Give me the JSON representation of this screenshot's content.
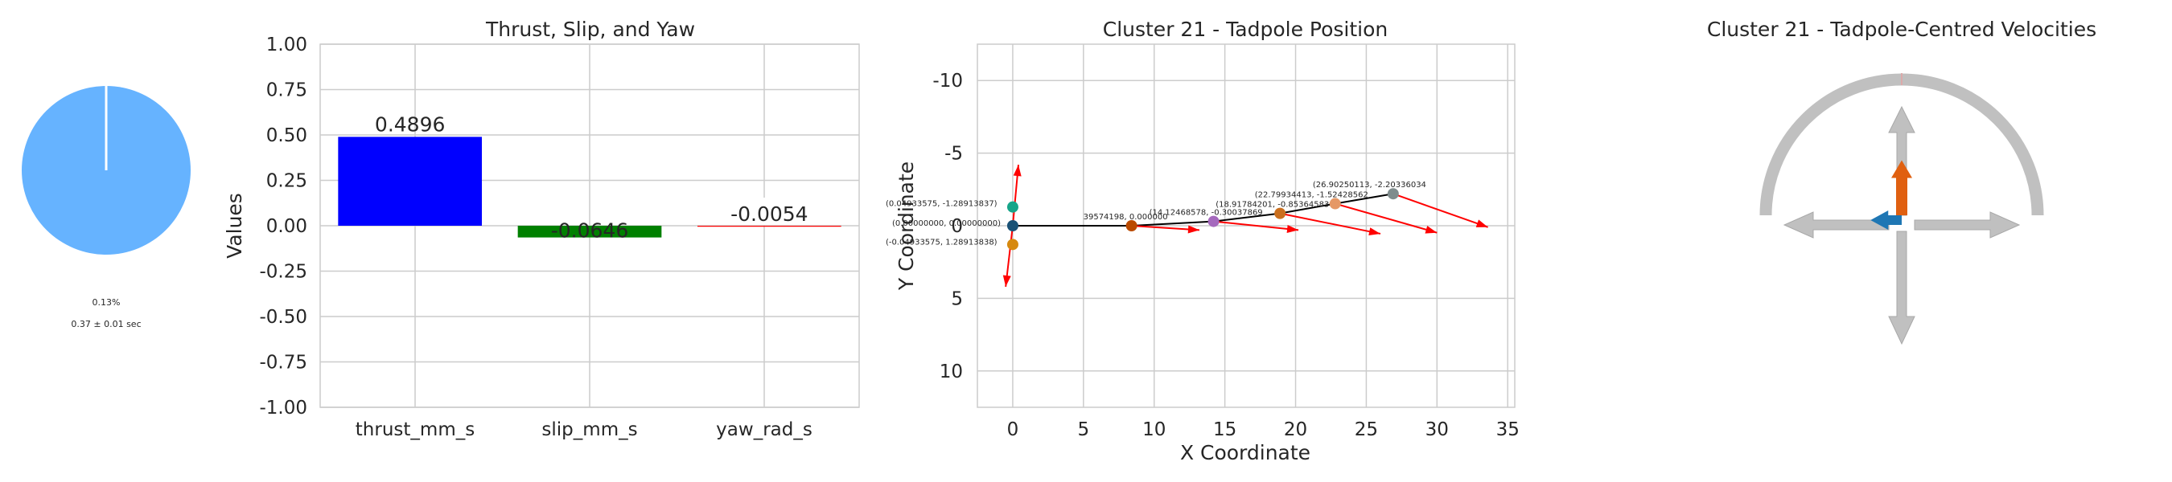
{
  "colors": {
    "pie": "#66b3ff",
    "thrust": "#0000ff",
    "slip": "#008000",
    "yaw": "#ff0000",
    "velocity_arrow": "#ff0000",
    "trajectory_line": "#000000",
    "compass_gray": "#c0c0c0",
    "thrust_arrow": "#e06010",
    "slip_arrow": "#1f77b4"
  },
  "chart_data": [
    {
      "type": "pie",
      "slices": [
        {
          "label": "",
          "value": 99.87
        },
        {
          "label": "0.13%",
          "value": 0.13
        }
      ],
      "annotations": [
        "0.13%",
        "0.37 ± 0.01 sec"
      ]
    },
    {
      "type": "bar",
      "title": "Thrust, Slip, and Yaw",
      "xlabel": "",
      "ylabel": "Values",
      "categories": [
        "thrust_mm_s",
        "slip_mm_s",
        "yaw_rad_s"
      ],
      "values": [
        0.4896,
        -0.0646,
        -0.0054
      ],
      "value_labels": [
        "0.4896",
        "-0.0646",
        "-0.0054"
      ],
      "ylim": [
        -1.0,
        1.0
      ],
      "yticks": [
        "1.00",
        "0.75",
        "0.50",
        "0.25",
        "0.00",
        "-0.25",
        "-0.50",
        "-0.75",
        "-1.00"
      ],
      "grid": true
    },
    {
      "type": "scatter",
      "title": "Cluster 21 - Tadpole Position",
      "xlabel": "X Coordinate",
      "ylabel": "Y Coordinate",
      "xlim": [
        -2.5,
        35.5
      ],
      "ylim": [
        12.5,
        -12.5
      ],
      "xticks": [
        "0",
        "5",
        "10",
        "15",
        "20",
        "25",
        "30",
        "35"
      ],
      "yticks": [
        "-10",
        "-5",
        "0",
        "5",
        "10"
      ],
      "y_inverted": true,
      "grid": true,
      "points": [
        {
          "x": 0.0,
          "y": -1.29,
          "label": "(0.04933575, -1.28913837)",
          "color": "#17a589"
        },
        {
          "x": 0.0,
          "y": 0.0,
          "label": "(0.00000000, 0.00000000)",
          "color": "#1a5276"
        },
        {
          "x": 0.0,
          "y": 1.29,
          "label": "(-0.04933575, 1.28913838)",
          "color": "#d68910"
        },
        {
          "x": 8.4,
          "y": 0.0,
          "label": "39574198, 0.000000",
          "color": "#ba4a00"
        },
        {
          "x": 14.2,
          "y": -0.3,
          "label": "(14.12468578, -0.30037869",
          "color": "#a569bd"
        },
        {
          "x": 18.9,
          "y": -0.85,
          "label": "(18.91784201, -0.85364583",
          "color": "#ca6f1e"
        },
        {
          "x": 22.8,
          "y": -1.52,
          "label": "(22.79934413, -1.52428562",
          "color": "#e59866"
        },
        {
          "x": 26.9,
          "y": -2.2,
          "label": "(26.90250113, -2.20336034",
          "color": "#7f8c8d"
        }
      ],
      "arrows": [
        {
          "x": 0.0,
          "y": 0.0,
          "dx": 0.4,
          "dy": -4.2
        },
        {
          "x": 0.0,
          "y": 0.0,
          "dx": -0.5,
          "dy": 4.2
        },
        {
          "x": 8.4,
          "y": 0.0,
          "dx": 4.8,
          "dy": 0.3
        },
        {
          "x": 14.2,
          "y": -0.3,
          "dx": 6.0,
          "dy": 0.6
        },
        {
          "x": 18.9,
          "y": -0.85,
          "dx": 7.1,
          "dy": 1.4
        },
        {
          "x": 22.8,
          "y": -1.52,
          "dx": 7.2,
          "dy": 2.0
        },
        {
          "x": 26.9,
          "y": -2.2,
          "dx": 6.7,
          "dy": 2.3
        }
      ]
    },
    {
      "type": "other",
      "title": "Cluster 21 - Tadpole-Centred Velocities",
      "thrust_value": 0.4896,
      "slip_value": -0.0646,
      "yaw_value": -0.0054
    }
  ]
}
